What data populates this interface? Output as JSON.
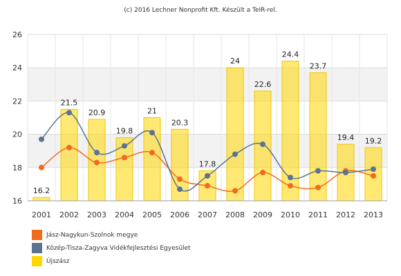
{
  "credit": "(c) 2016 Lechner Nonprofit Kft. Készült a TeIR-rel.",
  "chart_data": {
    "type": "bar",
    "title": "",
    "xlabel": "",
    "ylabel": "",
    "ylim": [
      16,
      26
    ],
    "yticks": [
      16,
      18,
      20,
      22,
      24,
      26
    ],
    "grid": true,
    "legend_position": "bottom-left",
    "categories": [
      "2001",
      "2002",
      "2003",
      "2004",
      "2005",
      "2006",
      "2007",
      "2008",
      "2009",
      "2010",
      "2011",
      "2012",
      "2013"
    ],
    "series": [
      {
        "name": "Újszász",
        "kind": "bar",
        "color": "#FFD700",
        "values": [
          16.2,
          21.5,
          20.9,
          19.8,
          21,
          20.3,
          17.8,
          24,
          22.6,
          24.4,
          23.7,
          19.4,
          19.2
        ],
        "labels": [
          "16.2",
          "21.5",
          "20.9",
          "19.8",
          "21",
          "20.3",
          "17.8",
          "24",
          "22.6",
          "24.4",
          "23.7",
          "19.4",
          "19.2"
        ]
      },
      {
        "name": "Jász-Nagykun-Szolnok megye",
        "kind": "line",
        "color": "#F26B1D",
        "values": [
          18.0,
          19.2,
          18.3,
          18.6,
          18.9,
          17.3,
          16.9,
          16.6,
          17.7,
          16.9,
          16.8,
          17.8,
          17.5
        ]
      },
      {
        "name": "Közép-Tisza-Zagyva Vidékfejlesztési Egyesület",
        "kind": "line",
        "color": "#5B7390",
        "values": [
          19.7,
          21.3,
          18.9,
          19.3,
          20.1,
          16.7,
          17.5,
          18.8,
          19.4,
          17.4,
          17.8,
          17.7,
          17.9
        ]
      }
    ]
  },
  "legend": [
    {
      "label": "Jász-Nagykun-Szolnok megye",
      "color": "#F26B1D"
    },
    {
      "label": "Közép-Tisza-Zagyva Vidékfejlesztési Egyesület",
      "color": "#5B7390"
    },
    {
      "label": "Újszász",
      "color": "#FFD700"
    }
  ]
}
